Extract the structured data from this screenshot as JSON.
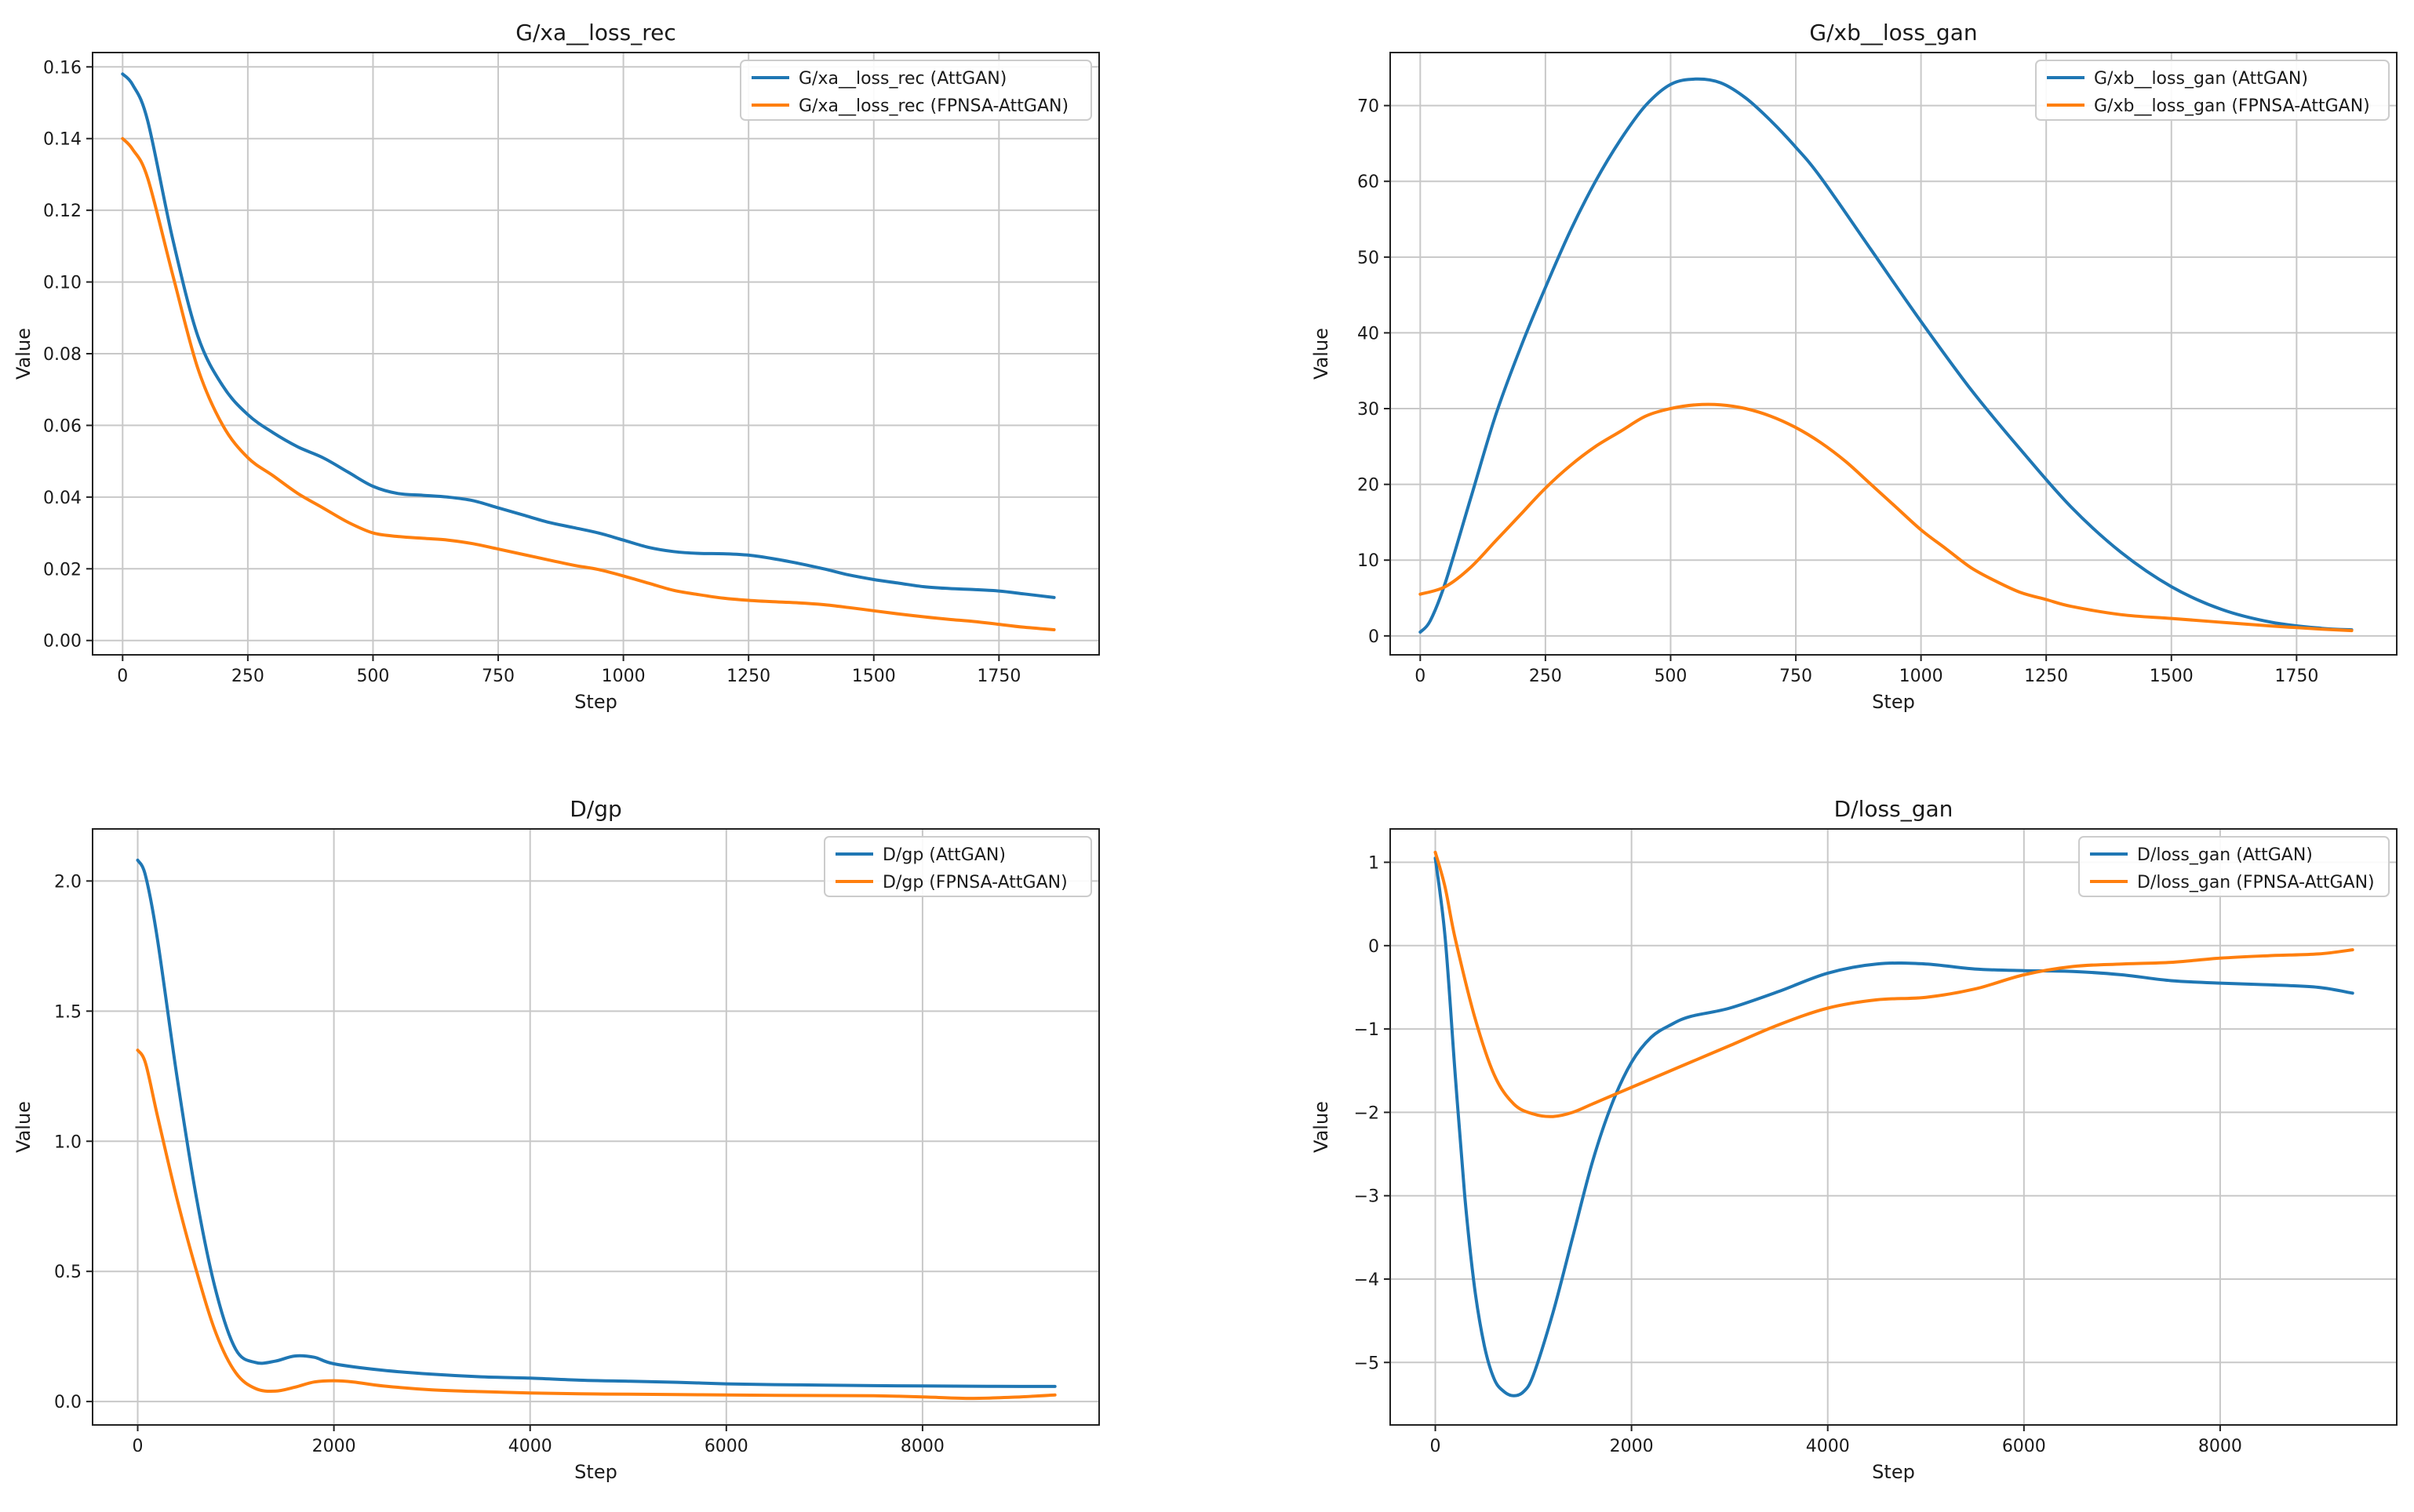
{
  "chart_data": [
    {
      "type": "line",
      "title": "G/xa__loss_rec",
      "xlabel": "Step",
      "ylabel": "Value",
      "xlim": [
        -60,
        1950
      ],
      "ylim": [
        -0.004,
        0.164
      ],
      "xticks": [
        0,
        250,
        500,
        750,
        1000,
        1250,
        1500,
        1750
      ],
      "xtick_labels": [
        "0",
        "250",
        "500",
        "750",
        "1000",
        "1250",
        "1500",
        "1750"
      ],
      "yticks": [
        0.0,
        0.02,
        0.04,
        0.06,
        0.08,
        0.1,
        0.12,
        0.14,
        0.16
      ],
      "ytick_labels": [
        "0.00",
        "0.02",
        "0.04",
        "0.06",
        "0.08",
        "0.10",
        "0.12",
        "0.14",
        "0.16"
      ],
      "grid": true,
      "legend_position": "top-right",
      "series": [
        {
          "name": "G/xa__loss_rec (AttGAN)",
          "color": "#1f77b4",
          "x": [
            0,
            20,
            50,
            100,
            150,
            200,
            250,
            300,
            350,
            400,
            450,
            500,
            550,
            600,
            650,
            700,
            750,
            800,
            850,
            900,
            950,
            1000,
            1050,
            1100,
            1150,
            1200,
            1250,
            1300,
            1350,
            1400,
            1450,
            1500,
            1550,
            1600,
            1650,
            1700,
            1750,
            1800,
            1860
          ],
          "y": [
            0.158,
            0.155,
            0.145,
            0.112,
            0.085,
            0.071,
            0.063,
            0.058,
            0.054,
            0.051,
            0.047,
            0.043,
            0.041,
            0.0405,
            0.04,
            0.039,
            0.037,
            0.035,
            0.033,
            0.0315,
            0.03,
            0.028,
            0.026,
            0.0248,
            0.0243,
            0.0242,
            0.0238,
            0.0228,
            0.0215,
            0.02,
            0.0183,
            0.017,
            0.016,
            0.015,
            0.0145,
            0.0142,
            0.0138,
            0.013,
            0.012
          ]
        },
        {
          "name": "G/xa__loss_rec (FPNSA-AttGAN)",
          "color": "#ff7f0e",
          "x": [
            0,
            20,
            50,
            100,
            150,
            200,
            250,
            300,
            350,
            400,
            450,
            500,
            550,
            600,
            650,
            700,
            750,
            800,
            850,
            900,
            950,
            1000,
            1050,
            1100,
            1150,
            1200,
            1250,
            1300,
            1350,
            1400,
            1450,
            1500,
            1550,
            1600,
            1650,
            1700,
            1750,
            1800,
            1860
          ],
          "y": [
            0.14,
            0.137,
            0.129,
            0.102,
            0.076,
            0.06,
            0.051,
            0.046,
            0.041,
            0.037,
            0.033,
            0.03,
            0.029,
            0.0285,
            0.028,
            0.027,
            0.0255,
            0.024,
            0.0225,
            0.021,
            0.0198,
            0.018,
            0.016,
            0.014,
            0.0128,
            0.0118,
            0.0112,
            0.0108,
            0.0105,
            0.01,
            0.0092,
            0.0083,
            0.0074,
            0.0066,
            0.0059,
            0.0053,
            0.0045,
            0.0037,
            0.003
          ]
        }
      ]
    },
    {
      "type": "line",
      "title": "G/xb__loss_gan",
      "xlabel": "Step",
      "ylabel": "Value",
      "xlim": [
        -60,
        1950
      ],
      "ylim": [
        -2.5,
        77
      ],
      "xticks": [
        0,
        250,
        500,
        750,
        1000,
        1250,
        1500,
        1750
      ],
      "xtick_labels": [
        "0",
        "250",
        "500",
        "750",
        "1000",
        "1250",
        "1500",
        "1750"
      ],
      "yticks": [
        0,
        10,
        20,
        30,
        40,
        50,
        60,
        70
      ],
      "ytick_labels": [
        "0",
        "10",
        "20",
        "30",
        "40",
        "50",
        "60",
        "70"
      ],
      "grid": true,
      "legend_position": "top-right",
      "series": [
        {
          "name": "G/xb__loss_gan (AttGAN)",
          "color": "#1f77b4",
          "x": [
            0,
            20,
            50,
            100,
            150,
            200,
            250,
            300,
            350,
            400,
            450,
            500,
            550,
            600,
            650,
            700,
            750,
            800,
            900,
            1000,
            1100,
            1200,
            1300,
            1400,
            1500,
            1600,
            1700,
            1800,
            1860
          ],
          "y": [
            0.5,
            2,
            7,
            18,
            29,
            38,
            46,
            53.5,
            60,
            65.5,
            70,
            72.8,
            73.5,
            73,
            71,
            68,
            64.5,
            60.5,
            51,
            41.5,
            32.5,
            24.5,
            17,
            11,
            6.5,
            3.5,
            1.8,
            1.0,
            0.8
          ]
        },
        {
          "name": "G/xb__loss_gan (FPNSA-AttGAN)",
          "color": "#ff7f0e",
          "x": [
            0,
            50,
            100,
            150,
            200,
            250,
            300,
            350,
            400,
            450,
            500,
            550,
            600,
            650,
            700,
            750,
            800,
            850,
            900,
            950,
            1000,
            1050,
            1100,
            1150,
            1200,
            1250,
            1300,
            1400,
            1500,
            1600,
            1700,
            1800,
            1860
          ],
          "y": [
            5.5,
            6.5,
            9,
            12.5,
            16,
            19.5,
            22.5,
            25,
            27,
            29,
            30,
            30.5,
            30.5,
            30,
            29,
            27.5,
            25.5,
            23,
            20,
            17,
            14,
            11.5,
            9,
            7.2,
            5.7,
            4.8,
            3.9,
            2.8,
            2.3,
            1.8,
            1.3,
            0.9,
            0.7
          ]
        }
      ]
    },
    {
      "type": "line",
      "title": "D/gp",
      "xlabel": "Step",
      "ylabel": "Value",
      "xlim": [
        -460,
        9800
      ],
      "ylim": [
        -0.09,
        2.2
      ],
      "xticks": [
        0,
        2000,
        4000,
        6000,
        8000
      ],
      "xtick_labels": [
        "0",
        "2000",
        "4000",
        "6000",
        "8000"
      ],
      "yticks": [
        0.0,
        0.5,
        1.0,
        1.5,
        2.0
      ],
      "ytick_labels": [
        "0.0",
        "0.5",
        "1.0",
        "1.5",
        "2.0"
      ],
      "grid": true,
      "legend_position": "top-right",
      "series": [
        {
          "name": "D/gp (AttGAN)",
          "color": "#1f77b4",
          "x": [
            0,
            80,
            200,
            400,
            600,
            800,
            1000,
            1200,
            1400,
            1600,
            1800,
            2000,
            2500,
            3000,
            3500,
            4000,
            4500,
            5000,
            5500,
            6000,
            6500,
            7000,
            7500,
            8000,
            8500,
            9000,
            9350
          ],
          "y": [
            2.08,
            2.02,
            1.78,
            1.25,
            0.78,
            0.42,
            0.2,
            0.15,
            0.155,
            0.175,
            0.17,
            0.145,
            0.12,
            0.105,
            0.095,
            0.09,
            0.082,
            0.078,
            0.074,
            0.068,
            0.065,
            0.063,
            0.061,
            0.06,
            0.059,
            0.058,
            0.058
          ]
        },
        {
          "name": "D/gp (FPNSA-AttGAN)",
          "color": "#ff7f0e",
          "x": [
            0,
            80,
            200,
            400,
            600,
            800,
            1000,
            1200,
            1400,
            1600,
            1800,
            2000,
            2200,
            2500,
            3000,
            3500,
            4000,
            4500,
            5000,
            5500,
            6000,
            6500,
            7000,
            7500,
            8000,
            8500,
            9000,
            9350
          ],
          "y": [
            1.35,
            1.3,
            1.1,
            0.78,
            0.5,
            0.26,
            0.11,
            0.05,
            0.04,
            0.055,
            0.075,
            0.08,
            0.075,
            0.06,
            0.045,
            0.038,
            0.033,
            0.03,
            0.028,
            0.027,
            0.025,
            0.024,
            0.023,
            0.022,
            0.018,
            0.012,
            0.018,
            0.025
          ]
        }
      ]
    },
    {
      "type": "line",
      "title": "D/loss_gan",
      "xlabel": "Step",
      "ylabel": "Value",
      "xlim": [
        -460,
        9800
      ],
      "ylim": [
        -5.75,
        1.4
      ],
      "xticks": [
        0,
        2000,
        4000,
        6000,
        8000
      ],
      "xtick_labels": [
        "0",
        "2000",
        "4000",
        "6000",
        "8000"
      ],
      "yticks": [
        -5,
        -4,
        -3,
        -2,
        -1,
        0,
        1
      ],
      "ytick_labels": [
        "−5",
        "−4",
        "−3",
        "−2",
        "−1",
        "0",
        "1"
      ],
      "grid": true,
      "legend_position": "top-right",
      "series": [
        {
          "name": "D/loss_gan (AttGAN)",
          "color": "#1f77b4",
          "x": [
            0,
            100,
            200,
            300,
            400,
            500,
            600,
            700,
            800,
            900,
            1000,
            1200,
            1400,
            1600,
            1800,
            2000,
            2200,
            2400,
            2600,
            3000,
            3500,
            4000,
            4500,
            5000,
            5500,
            6000,
            6500,
            7000,
            7500,
            8000,
            8500,
            9000,
            9350
          ],
          "y": [
            1.05,
            0.1,
            -1.5,
            -3.0,
            -4.1,
            -4.8,
            -5.2,
            -5.35,
            -5.4,
            -5.35,
            -5.15,
            -4.4,
            -3.5,
            -2.6,
            -1.9,
            -1.4,
            -1.1,
            -0.95,
            -0.85,
            -0.75,
            -0.55,
            -0.33,
            -0.22,
            -0.22,
            -0.28,
            -0.3,
            -0.31,
            -0.35,
            -0.42,
            -0.45,
            -0.47,
            -0.5,
            -0.57
          ]
        },
        {
          "name": "D/loss_gan (FPNSA-AttGAN)",
          "color": "#ff7f0e",
          "x": [
            0,
            100,
            200,
            400,
            600,
            800,
            1000,
            1200,
            1400,
            1600,
            1800,
            2000,
            2500,
            3000,
            3500,
            4000,
            4500,
            5000,
            5500,
            6000,
            6500,
            7000,
            7500,
            8000,
            8500,
            9000,
            9350
          ],
          "y": [
            1.12,
            0.7,
            0.1,
            -0.85,
            -1.55,
            -1.9,
            -2.02,
            -2.05,
            -2.0,
            -1.9,
            -1.8,
            -1.7,
            -1.45,
            -1.2,
            -0.95,
            -0.75,
            -0.65,
            -0.62,
            -0.52,
            -0.35,
            -0.25,
            -0.22,
            -0.2,
            -0.15,
            -0.12,
            -0.1,
            -0.05
          ]
        }
      ]
    }
  ]
}
